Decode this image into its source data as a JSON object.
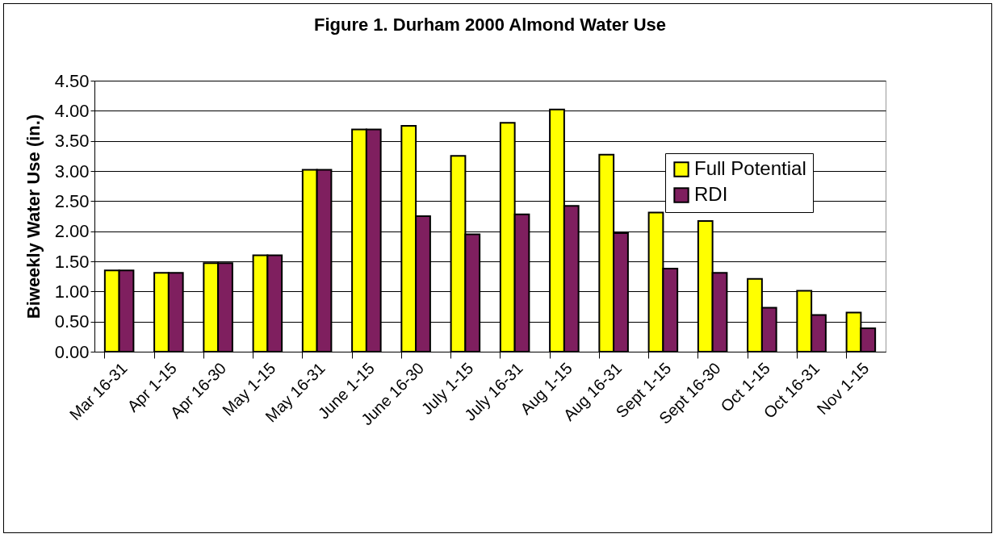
{
  "chart_data": {
    "type": "bar",
    "title": "Figure 1. Durham 2000 Almond Water Use",
    "ylabel": "Biweekly Water Use (in.)",
    "categories": [
      "Mar 16-31",
      "Apr 1-15",
      "Apr 16-30",
      "May 1-15",
      "May 16-31",
      "June 1-15",
      "June 16-30",
      "July 1-15",
      "July 16-31",
      "Aug 1-15",
      "Aug 16-31",
      "Sept 1-15",
      "Sept 16-30",
      "Oct 1-15",
      "Oct 16-31",
      "Nov 1-15"
    ],
    "series": [
      {
        "name": "Full Potential",
        "color": "#ffff00",
        "values": [
          1.35,
          1.31,
          1.47,
          1.6,
          3.02,
          3.69,
          3.75,
          3.25,
          3.8,
          4.02,
          3.27,
          2.31,
          2.17,
          1.21,
          1.01,
          0.65
        ]
      },
      {
        "name": "RDI",
        "color": "#7f1f5f",
        "values": [
          1.35,
          1.31,
          1.47,
          1.6,
          3.02,
          3.69,
          2.25,
          1.95,
          2.28,
          2.42,
          1.97,
          1.38,
          1.31,
          0.73,
          0.61,
          0.39
        ]
      }
    ],
    "ylim": [
      0,
      4.5
    ],
    "yticks": [
      {
        "value": 0,
        "label": "0.00"
      },
      {
        "value": 0.5,
        "label": "0.50"
      },
      {
        "value": 1,
        "label": "1.00"
      },
      {
        "value": 1.5,
        "label": "1.50"
      },
      {
        "value": 2,
        "label": "2.00"
      },
      {
        "value": 2.5,
        "label": "2.50"
      },
      {
        "value": 3,
        "label": "3.00"
      },
      {
        "value": 3.5,
        "label": "3.50"
      },
      {
        "value": 4,
        "label": "4.00"
      },
      {
        "value": 4.5,
        "label": "4.50"
      }
    ],
    "grid": "y",
    "legend": "top right"
  }
}
